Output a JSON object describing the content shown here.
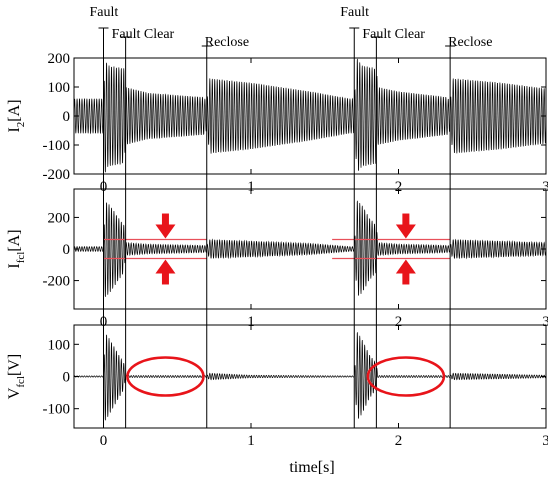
{
  "chart_data": [
    {
      "type": "line",
      "ylabel": "I2[A]",
      "ylabel_main": "I",
      "ylabel_sub": "2",
      "ylabel_unit": "[A]",
      "ylim": [
        -200,
        200
      ],
      "yticks": [
        {
          "value": 200,
          "label": "200"
        },
        {
          "value": 100,
          "label": "100"
        },
        {
          "value": 0,
          "label": "0"
        },
        {
          "value": -100,
          "label": "-100"
        },
        {
          "value": -200,
          "label": "-200"
        }
      ],
      "xlim": [
        -0.2,
        3.0
      ],
      "xticks": [
        {
          "value": 0,
          "label": "0"
        },
        {
          "value": 1,
          "label": "1"
        },
        {
          "value": 2,
          "label": "2"
        },
        {
          "value": 3,
          "label": "3"
        }
      ],
      "envelope": {
        "time": [
          -0.2,
          0.0,
          0.01,
          0.03,
          0.08,
          0.14,
          0.15,
          0.3,
          0.55,
          0.68,
          0.7,
          0.72,
          1.0,
          1.4,
          1.67,
          1.7,
          1.72,
          1.75,
          1.8,
          1.85,
          1.86,
          2.0,
          2.25,
          2.33,
          2.35,
          2.37,
          2.7,
          3.0
        ],
        "amplitude": [
          60,
          60,
          200,
          175,
          170,
          165,
          100,
          80,
          70,
          65,
          50,
          130,
          115,
          85,
          60,
          60,
          200,
          175,
          170,
          165,
          100,
          85,
          70,
          65,
          50,
          130,
          115,
          95
        ]
      }
    },
    {
      "type": "line",
      "ylabel": "Ifcl[A]",
      "ylabel_main": "I",
      "ylabel_sub": "fcl",
      "ylabel_unit": "[A]",
      "ylim": [
        -380,
        380
      ],
      "yticks": [
        {
          "value": 200,
          "label": "200"
        },
        {
          "value": 0,
          "label": "0"
        },
        {
          "value": -200,
          "label": "-200"
        }
      ],
      "xlim": [
        -0.2,
        3.0
      ],
      "xticks": [
        {
          "value": 0,
          "label": "0"
        },
        {
          "value": 1,
          "label": "1"
        },
        {
          "value": 2,
          "label": "2"
        },
        {
          "value": 3,
          "label": "3"
        }
      ],
      "band_limits": [
        60,
        -60
      ],
      "envelope": {
        "time": [
          -0.2,
          0.0,
          0.01,
          0.05,
          0.1,
          0.14,
          0.15,
          0.3,
          0.55,
          0.68,
          0.7,
          0.72,
          1.0,
          1.4,
          1.67,
          1.7,
          1.72,
          1.76,
          1.8,
          1.85,
          1.86,
          2.0,
          2.25,
          2.33,
          2.35,
          2.37,
          2.7,
          3.0
        ],
        "amplitude": [
          15,
          15,
          310,
          270,
          200,
          150,
          40,
          30,
          25,
          22,
          20,
          60,
          50,
          35,
          15,
          15,
          310,
          270,
          200,
          150,
          40,
          30,
          25,
          22,
          20,
          60,
          50,
          40
        ]
      }
    },
    {
      "type": "line",
      "ylabel": "Vfcl[V]",
      "ylabel_main": "V",
      "ylabel_sub": "fcl",
      "ylabel_unit": "[V]",
      "ylim": [
        -160,
        160
      ],
      "yticks": [
        {
          "value": 100,
          "label": "100"
        },
        {
          "value": 0,
          "label": "0"
        },
        {
          "value": -100,
          "label": "-100"
        }
      ],
      "xlim": [
        -0.2,
        3.0
      ],
      "xticks": [
        {
          "value": 0,
          "label": "0"
        },
        {
          "value": 1,
          "label": "1"
        },
        {
          "value": 2,
          "label": "2"
        },
        {
          "value": 3,
          "label": "3"
        }
      ],
      "xlabel": "time[s]",
      "envelope": {
        "time": [
          -0.2,
          0.0,
          0.01,
          0.05,
          0.1,
          0.14,
          0.15,
          0.68,
          0.7,
          0.72,
          1.0,
          1.67,
          1.7,
          1.72,
          1.76,
          1.8,
          1.85,
          1.86,
          2.33,
          2.35,
          2.37,
          3.0
        ],
        "amplitude": [
          2,
          2,
          140,
          110,
          70,
          40,
          3,
          3,
          3,
          10,
          4,
          2,
          2,
          140,
          110,
          70,
          40,
          3,
          3,
          3,
          10,
          4
        ]
      }
    }
  ],
  "events": [
    {
      "time": 0.0,
      "label": "Fault",
      "label_row": 0
    },
    {
      "time": 0.15,
      "label": "Fault Clear",
      "label_row": 1
    },
    {
      "time": 0.7,
      "label": "Reclose",
      "label_row": 2
    },
    {
      "time": 1.7,
      "label": "Fault",
      "label_row": 0
    },
    {
      "time": 1.85,
      "label": "Fault Clear",
      "label_row": 1
    },
    {
      "time": 2.35,
      "label": "Reclose",
      "label_row": 2
    }
  ],
  "highlights": {
    "arrow_pairs": [
      {
        "time": 0.42
      },
      {
        "time": 2.05
      }
    ],
    "ellipses": [
      {
        "time": 0.42
      },
      {
        "time": 2.05
      }
    ],
    "color": "#e8141a",
    "band_color": "#e8505a"
  },
  "colors": {
    "trace": "#000000",
    "axis": "#000000"
  }
}
